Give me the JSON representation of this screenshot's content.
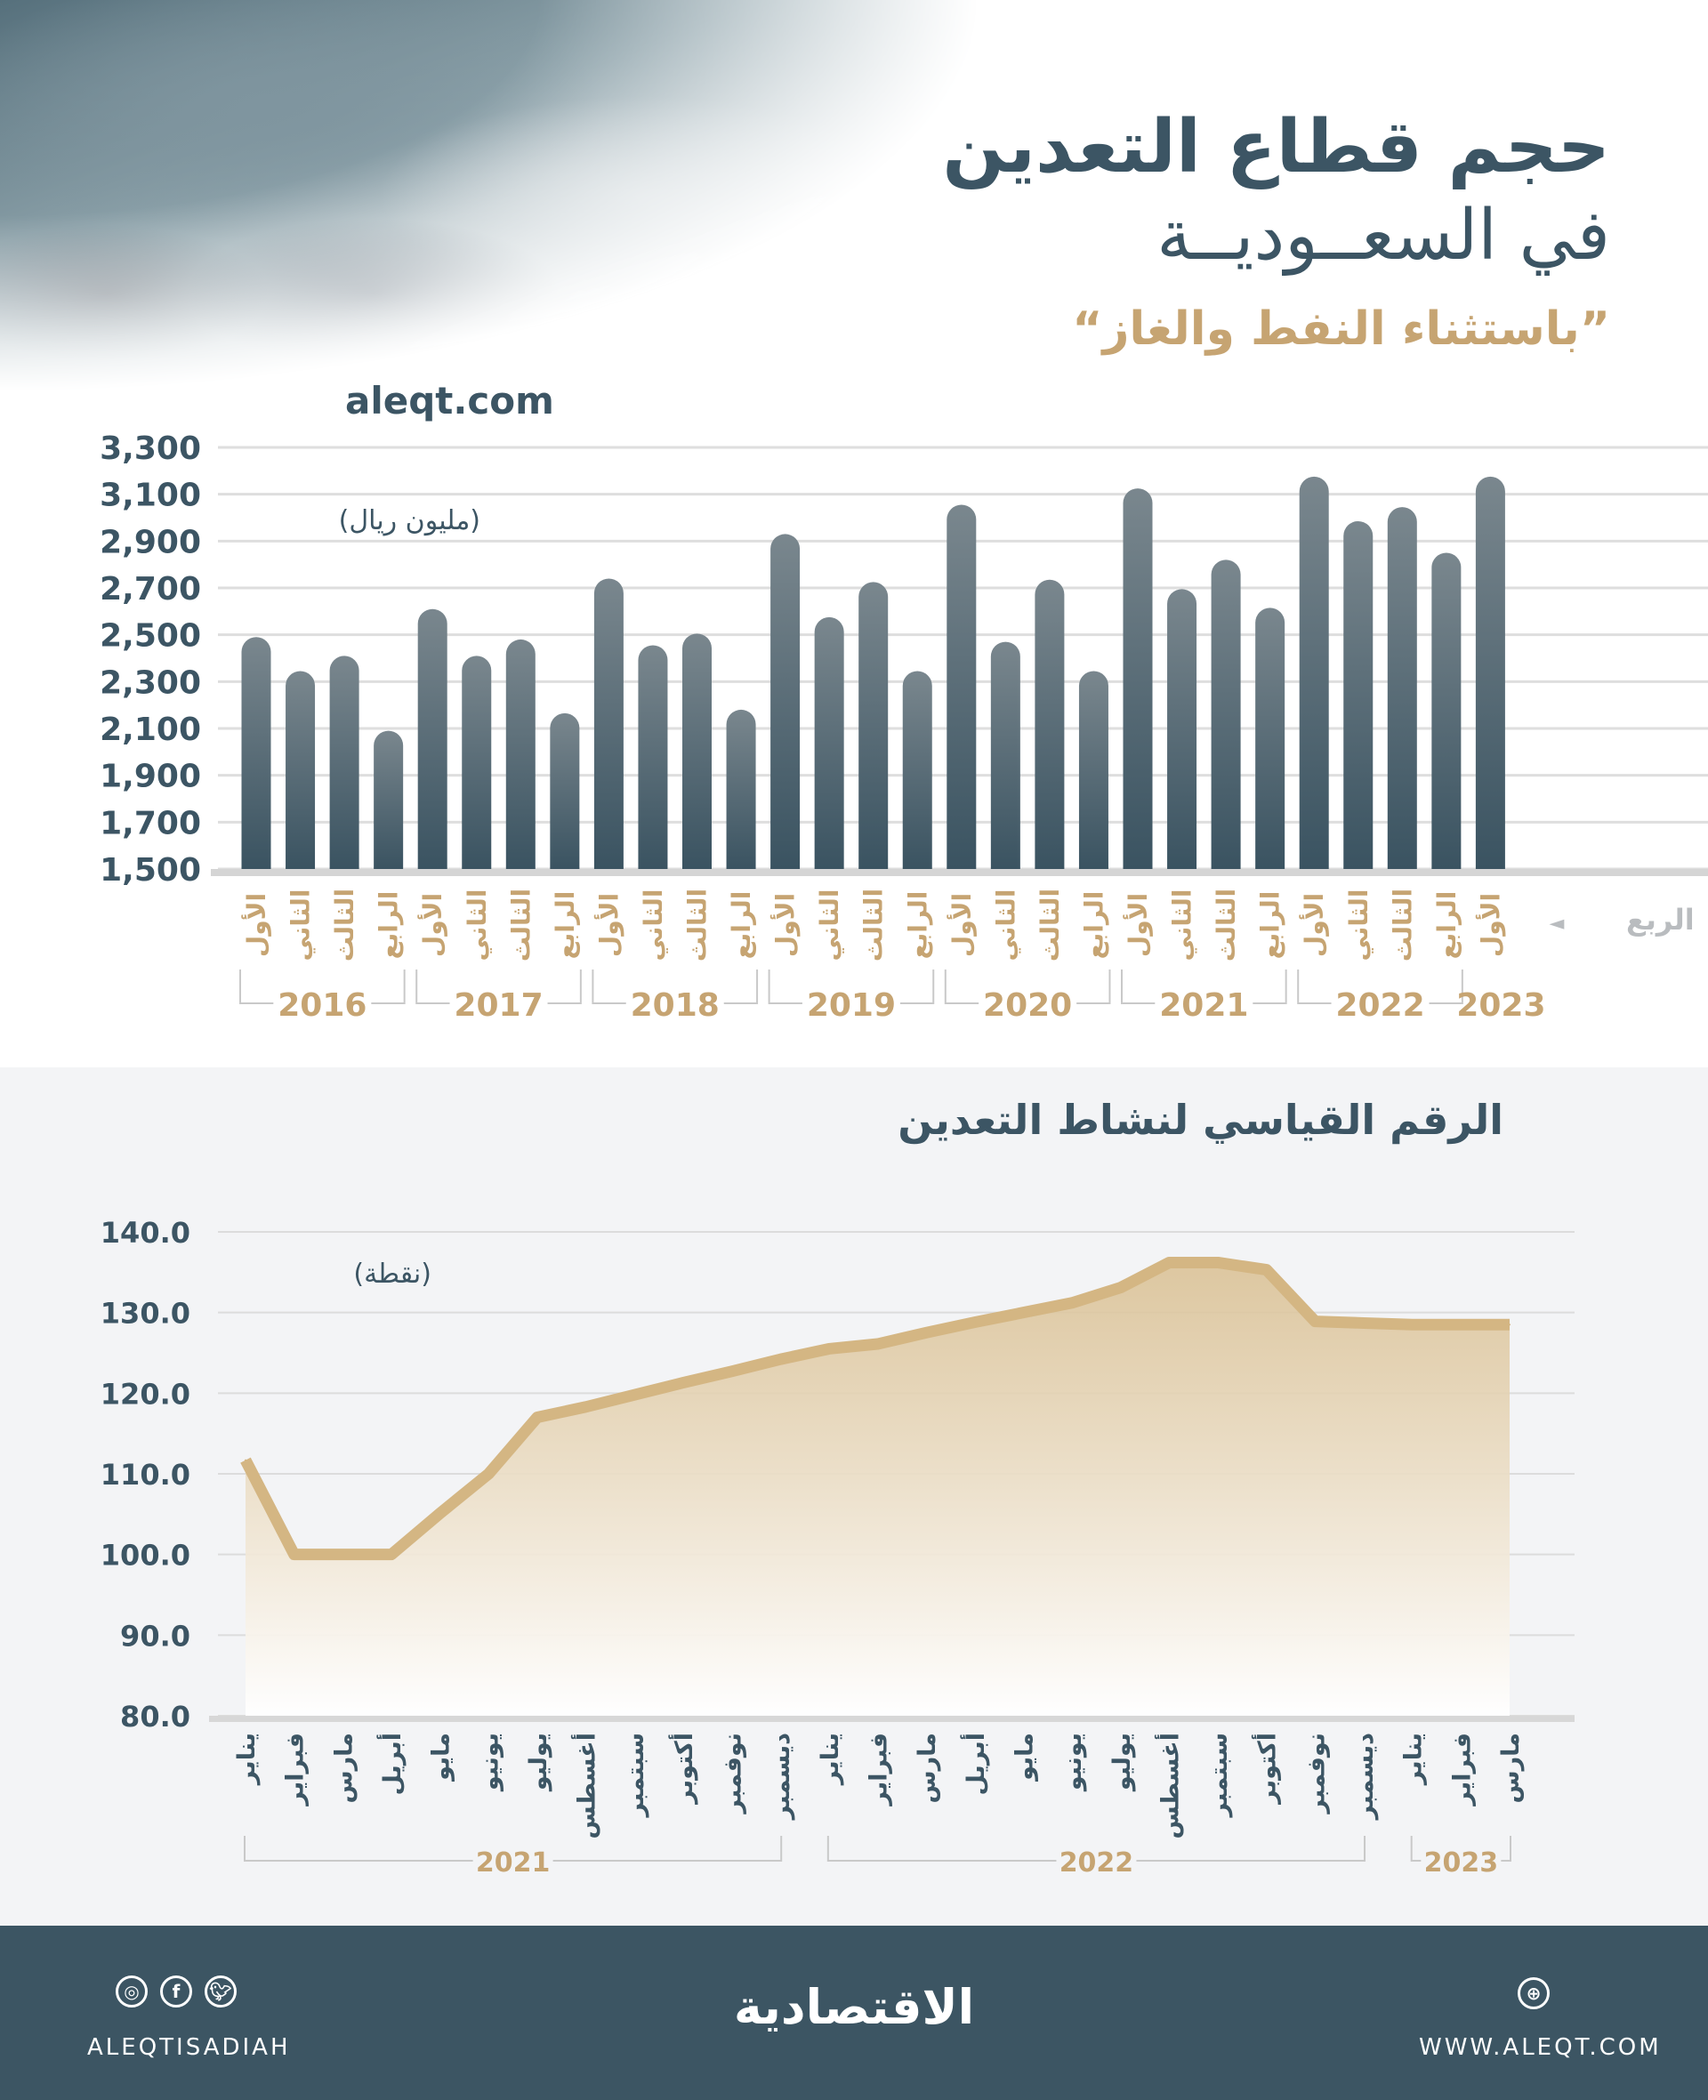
{
  "header": {
    "title_line1": "حجم قطاع التعدين",
    "title_line2": "في السعــوديــة",
    "subtitle": "”باستثناء النفط والغاز“",
    "site": "aleqt.com"
  },
  "chart_data": [
    {
      "type": "bar",
      "unit_label": "(مليون ريال)",
      "x_axis_label": "الربع",
      "ylim": [
        1500,
        3300
      ],
      "yticks": [
        1500,
        1700,
        1900,
        2100,
        2300,
        2500,
        2700,
        2900,
        3100,
        3300
      ],
      "ytick_labels": [
        "1,500",
        "1,700",
        "1,900",
        "2,100",
        "2,300",
        "2,500",
        "2,700",
        "2,900",
        "3,100",
        "3,300"
      ],
      "grid": true,
      "years": [
        {
          "label": "2016",
          "count": 4
        },
        {
          "label": "2017",
          "count": 4
        },
        {
          "label": "2018",
          "count": 4
        },
        {
          "label": "2019",
          "count": 4
        },
        {
          "label": "2020",
          "count": 4
        },
        {
          "label": "2021",
          "count": 4
        },
        {
          "label": "2022",
          "count": 4
        },
        {
          "label": "2023",
          "count": 1
        }
      ],
      "quarter_names": [
        "الأول",
        "الثاني",
        "الثالث",
        "الرابع"
      ],
      "values": [
        2490,
        2345,
        2410,
        2090,
        2610,
        2410,
        2480,
        2165,
        2740,
        2455,
        2505,
        2180,
        2930,
        2575,
        2725,
        2345,
        3055,
        2470,
        2735,
        2345,
        3125,
        2695,
        2820,
        2615,
        3175,
        2985,
        3045,
        2850,
        3175
      ],
      "bar_color_top": "#7a878e",
      "bar_color_bottom": "#3a5361"
    },
    {
      "type": "area",
      "title": "الرقم القياسي لنشاط التعدين",
      "unit_label": "(نقطة)",
      "ylim": [
        80,
        140
      ],
      "yticks": [
        80,
        90,
        100,
        110,
        120,
        130,
        140
      ],
      "ytick_labels": [
        "80.0",
        "90.0",
        "100.0",
        "110.0",
        "120.0",
        "130.0",
        "140.0"
      ],
      "grid": true,
      "x": [
        "يناير",
        "فبراير",
        "مارس",
        "أبريل",
        "مايو",
        "يونيو",
        "يوليو",
        "أغسطس",
        "سبتمبر",
        "أكتوبر",
        "نوفمبر",
        "ديسمبر",
        "يناير",
        "فبراير",
        "مارس",
        "أبريل",
        "مايو",
        "يونيو",
        "يوليو",
        "أغسطس",
        "سبتمبر",
        "أكتوبر",
        "نوفمبر",
        "ديسمبر",
        "يناير",
        "فبراير",
        "مارس"
      ],
      "years": [
        {
          "label": "2021",
          "count": 12
        },
        {
          "label": "2022",
          "count": 12
        },
        {
          "label": "2023",
          "count": 3
        }
      ],
      "values": [
        111.7,
        100,
        100,
        100,
        105.1,
        110,
        117,
        118.3,
        119.8,
        121.3,
        122.7,
        124.2,
        125.5,
        126.1,
        127.5,
        128.8,
        130,
        131.2,
        133.1,
        136.2,
        136.2,
        135.3,
        128.9,
        128.7,
        128.5,
        128.5,
        128.5
      ],
      "line_color": "#d4b683"
    }
  ],
  "footer": {
    "handle": "ALEQTISADIAH",
    "logo": "الاقتصادية",
    "website": "WWW.ALEQT.COM",
    "icons": [
      "instagram-icon",
      "facebook-icon",
      "twitter-icon",
      "dribbble-icon"
    ]
  }
}
